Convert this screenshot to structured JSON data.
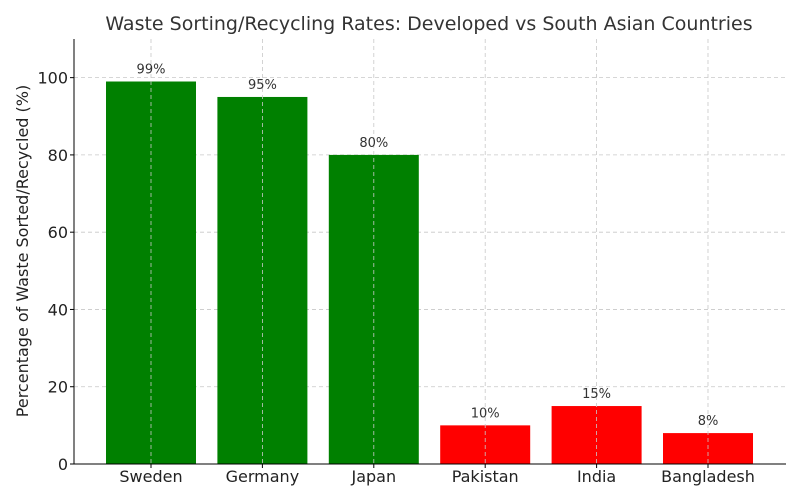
{
  "chart_data": {
    "type": "bar",
    "title": "Waste Sorting/Recycling Rates: Developed vs South Asian Countries",
    "xlabel": "",
    "ylabel": "Percentage of Waste Sorted/Recycled (%)",
    "categories": [
      "Sweden",
      "Germany",
      "Japan",
      "Pakistan",
      "India",
      "Bangladesh"
    ],
    "values": [
      99,
      95,
      80,
      10,
      15,
      8
    ],
    "data_labels": [
      "99%",
      "95%",
      "80%",
      "10%",
      "15%",
      "8%"
    ],
    "bar_colors": [
      "#008000",
      "#008000",
      "#008000",
      "#ff0000",
      "#ff0000",
      "#ff0000"
    ],
    "ylim": [
      0,
      110
    ],
    "yticks": [
      0,
      20,
      40,
      60,
      80,
      100
    ],
    "grid": true,
    "legend": "none"
  }
}
